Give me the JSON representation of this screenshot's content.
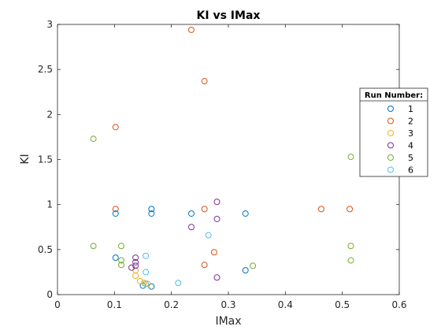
{
  "chart_data": {
    "type": "scatter",
    "title": "KI vs IMax",
    "xlabel": "IMax",
    "ylabel": "KI",
    "xlim": [
      0,
      0.6
    ],
    "ylim": [
      0,
      3
    ],
    "x_ticks": [
      "0",
      "0.1",
      "0.2",
      "0.3",
      "0.4",
      "0.5",
      "0.6"
    ],
    "y_ticks": [
      "0",
      "0.5",
      "1",
      "1.5",
      "2",
      "2.5",
      "3"
    ],
    "grid": false,
    "legend_title": "Run Number:",
    "legend_position": "right",
    "marker": "open-circle",
    "series": [
      {
        "name": "1",
        "color": "#0072BD",
        "x": [
          0.102,
          0.102,
          0.165,
          0.165,
          0.235,
          0.33,
          0.33,
          0.15,
          0.165
        ],
        "y": [
          0.9,
          0.41,
          0.95,
          0.9,
          0.9,
          0.9,
          0.27,
          0.1,
          0.09
        ]
      },
      {
        "name": "2",
        "color": "#D95319",
        "x": [
          0.235,
          0.258,
          0.102,
          0.102,
          0.258,
          0.463,
          0.513,
          0.275,
          0.258
        ],
        "y": [
          2.94,
          2.37,
          1.86,
          0.95,
          0.95,
          0.95,
          0.95,
          0.47,
          0.33
        ]
      },
      {
        "name": "3",
        "color": "#EDB120",
        "x": [
          0.137,
          0.137,
          0.145,
          0.152,
          0.158
        ],
        "y": [
          0.27,
          0.21,
          0.15,
          0.13,
          0.12
        ]
      },
      {
        "name": "4",
        "color": "#7E2F8E",
        "x": [
          0.28,
          0.28,
          0.235,
          0.137,
          0.137,
          0.137,
          0.13,
          0.28
        ],
        "y": [
          1.03,
          0.84,
          0.75,
          0.41,
          0.36,
          0.32,
          0.3,
          0.19
        ]
      },
      {
        "name": "5",
        "color": "#77AC30",
        "x": [
          0.063,
          0.515,
          0.063,
          0.112,
          0.112,
          0.112,
          0.515,
          0.515,
          0.343
        ],
        "y": [
          1.73,
          1.53,
          0.54,
          0.54,
          0.38,
          0.33,
          0.54,
          0.38,
          0.32
        ]
      },
      {
        "name": "6",
        "color": "#4DBEEE",
        "x": [
          0.265,
          0.155,
          0.155,
          0.155,
          0.212
        ],
        "y": [
          0.66,
          0.43,
          0.25,
          0.12,
          0.13
        ]
      }
    ]
  }
}
